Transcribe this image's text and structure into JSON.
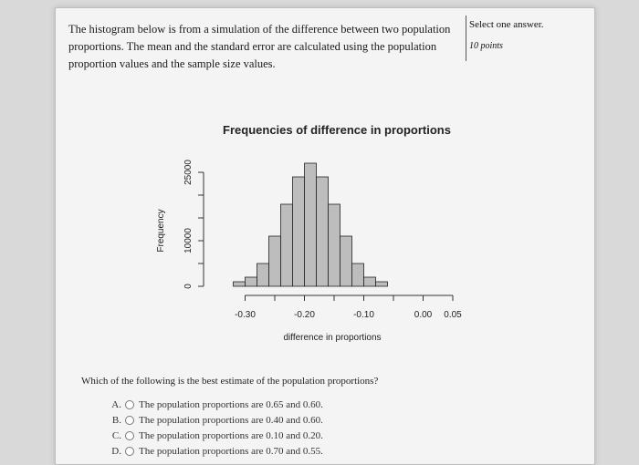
{
  "prompt_text": "The histogram below is from a simulation of the difference between two population proportions. The mean and the standard error are calculated using the population proportion values and the sample size values.",
  "side": {
    "instruction": "Select one answer.",
    "points": "10 points"
  },
  "chart_data": {
    "type": "bar",
    "title": "Frequencies of difference in proportions",
    "xlabel": "difference in proportions",
    "ylabel": "Frequency",
    "bin_edges": [
      -0.32,
      -0.3,
      -0.28,
      -0.26,
      -0.24,
      -0.22,
      -0.2,
      -0.18,
      -0.16,
      -0.14,
      -0.12,
      -0.1,
      -0.08,
      -0.06
    ],
    "values": [
      1000,
      2000,
      5000,
      11000,
      18000,
      24000,
      27000,
      24000,
      18000,
      11000,
      5000,
      2000,
      1000
    ],
    "xticks": [
      -0.3,
      -0.2,
      -0.1,
      0.0,
      0.05
    ],
    "xtick_labels": [
      "-0.30",
      "-0.20",
      "-0.10",
      "0.00",
      "0.05"
    ],
    "yticks": [
      0,
      10000,
      25000
    ],
    "ytick_labels": [
      "0",
      "10000",
      "25000"
    ],
    "xlim": [
      -0.35,
      0.05
    ],
    "ylim": [
      0,
      27000
    ],
    "bar_color": "#bdbdbd",
    "grid": false
  },
  "question": {
    "text": "Which of the following is the best estimate of the population proportions?",
    "options": [
      {
        "letter": "A.",
        "text": "The population proportions are 0.65 and 0.60."
      },
      {
        "letter": "B.",
        "text": "The population proportions are 0.40 and 0.60."
      },
      {
        "letter": "C.",
        "text": "The population proportions are 0.10 and 0.20."
      },
      {
        "letter": "D.",
        "text": "The population proportions are 0.70 and 0.55."
      }
    ]
  }
}
